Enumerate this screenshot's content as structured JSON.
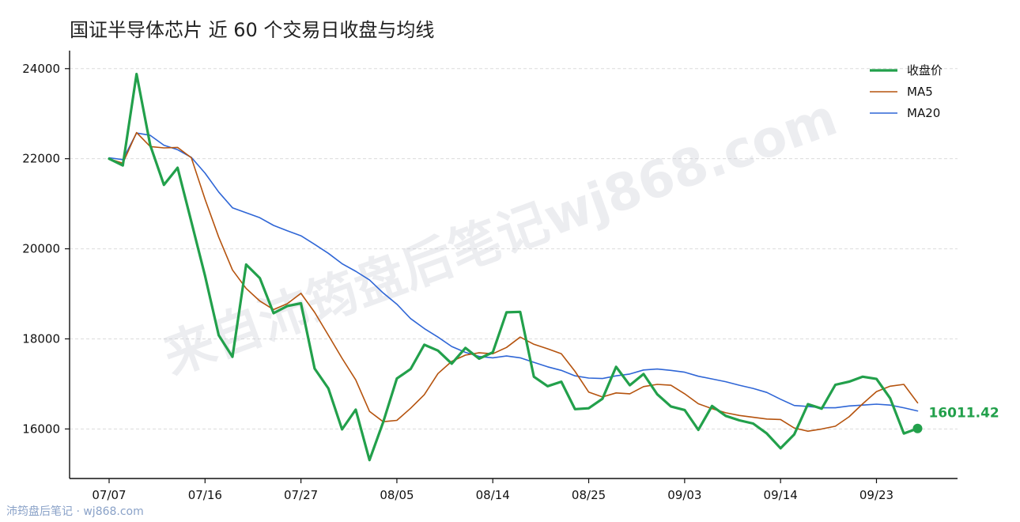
{
  "chart_data": {
    "type": "line",
    "title": "国证半导体芯片 近 60 个交易日收盘与均线",
    "watermark": "来自沛筠盘后笔记wj868.com",
    "footer": "沛筠盘后笔记 · wj868.com",
    "ylim": [
      14900,
      24400
    ],
    "yticks": [
      16000,
      18000,
      20000,
      22000,
      24000
    ],
    "xticks": [
      {
        "i": 0,
        "label": "07/07"
      },
      {
        "i": 7,
        "label": "07/16"
      },
      {
        "i": 14,
        "label": "07/27"
      },
      {
        "i": 21,
        "label": "08/05"
      },
      {
        "i": 28,
        "label": "08/14"
      },
      {
        "i": 35,
        "label": "08/25"
      },
      {
        "i": 42,
        "label": "09/03"
      },
      {
        "i": 49,
        "label": "09/14"
      },
      {
        "i": 56,
        "label": "09/23"
      }
    ],
    "grid": true,
    "legend_position": "top-right",
    "last_value_label": "16011.42",
    "series": [
      {
        "name": "收盘价",
        "color": "#22a04b",
        "width": 3.2,
        "values": [
          22000,
          21850,
          23880,
          22300,
          21420,
          21800,
          20600,
          19400,
          18080,
          17600,
          19650,
          19350,
          18570,
          18730,
          18790,
          17340,
          16900,
          15990,
          16430,
          15310,
          16150,
          17120,
          17330,
          17870,
          17740,
          17450,
          17800,
          17560,
          17700,
          18590,
          18600,
          17160,
          16950,
          17050,
          16440,
          16460,
          16670,
          17380,
          16970,
          17220,
          16770,
          16500,
          16420,
          15980,
          16510,
          16290,
          16190,
          16120,
          15900,
          15570,
          15880,
          16550,
          16450,
          16980,
          17050,
          17160,
          17110,
          16680,
          15900,
          16011.42
        ]
      },
      {
        "name": "MA5",
        "color": "#b5530e",
        "width": 1.6,
        "values": [
          22000,
          21900,
          22580,
          22270,
          22240,
          22250,
          22020,
          21100,
          20260,
          19530,
          19120,
          18840,
          18650,
          18780,
          19010,
          18590,
          18080,
          17570,
          17090,
          16390,
          16160,
          16190,
          16460,
          16760,
          17230,
          17500,
          17640,
          17690,
          17670,
          17810,
          18040,
          17880,
          17780,
          17670,
          17280,
          16820,
          16710,
          16800,
          16780,
          16940,
          16990,
          16970,
          16780,
          16560,
          16450,
          16360,
          16300,
          16260,
          16220,
          16210,
          16020,
          15950,
          16000,
          16060,
          16270,
          16560,
          16830,
          16950,
          16990,
          16580
        ]
      },
      {
        "name": "MA20",
        "color": "#2f66d6",
        "width": 1.6,
        "values": [
          22020,
          21980,
          22570,
          22520,
          22300,
          22200,
          22030,
          21680,
          21260,
          20910,
          20800,
          20690,
          20520,
          20400,
          20290,
          20100,
          19900,
          19670,
          19500,
          19310,
          19020,
          18770,
          18450,
          18230,
          18040,
          17830,
          17700,
          17610,
          17580,
          17620,
          17580,
          17480,
          17380,
          17300,
          17180,
          17130,
          17120,
          17180,
          17220,
          17310,
          17330,
          17300,
          17260,
          17170,
          17110,
          17050,
          16970,
          16900,
          16810,
          16660,
          16520,
          16500,
          16470,
          16470,
          16510,
          16530,
          16550,
          16530,
          16470,
          16400
        ]
      }
    ]
  }
}
